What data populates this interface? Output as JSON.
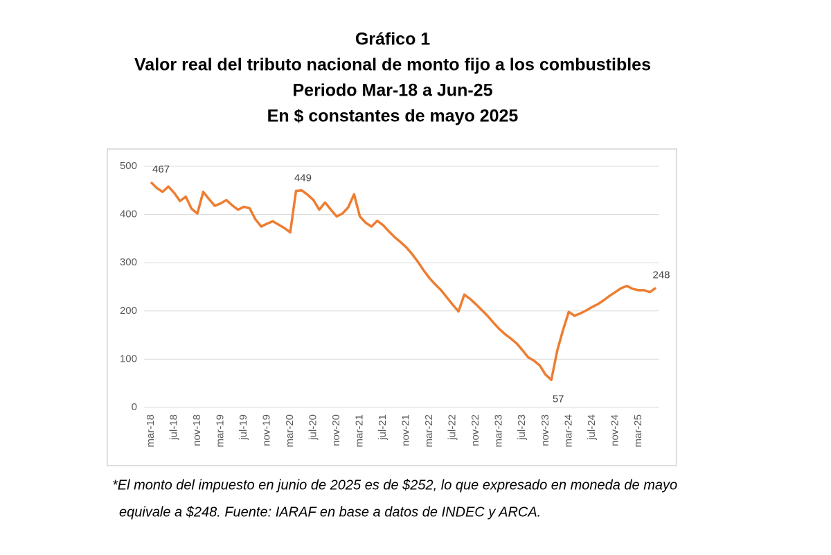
{
  "chart_data": {
    "type": "line",
    "title": [
      "Gráfico 1",
      "Valor real del tributo nacional de monto fijo a los combustibles",
      "Periodo Mar-18 a Jun-25",
      "En $ constantes de mayo 2025"
    ],
    "categories": [
      "mar-18",
      null,
      null,
      null,
      "jul-18",
      null,
      null,
      null,
      "nov-18",
      null,
      null,
      null,
      "mar-19",
      null,
      null,
      null,
      "jul-19",
      null,
      null,
      null,
      "nov-19",
      null,
      null,
      null,
      "mar-20",
      null,
      null,
      null,
      "jul-20",
      null,
      null,
      null,
      "nov-20",
      null,
      null,
      null,
      "mar-21",
      null,
      null,
      null,
      "jul-21",
      null,
      null,
      null,
      "nov-21",
      null,
      null,
      null,
      "mar-22",
      null,
      null,
      null,
      "jul-22",
      null,
      null,
      null,
      "nov-22",
      null,
      null,
      null,
      "mar-23",
      null,
      null,
      null,
      "jul-23",
      null,
      null,
      null,
      "nov-23",
      null,
      null,
      null,
      "mar-24",
      null,
      null,
      null,
      "jul-24",
      null,
      null,
      null,
      "nov-24",
      null,
      null,
      null,
      "mar-25",
      null,
      null,
      null
    ],
    "series": [
      {
        "color": "#ED7D31",
        "values": [
          467,
          455,
          447,
          458,
          445,
          428,
          437,
          412,
          402,
          447,
          432,
          418,
          423,
          430,
          419,
          410,
          416,
          413,
          390,
          375,
          381,
          386,
          379,
          372,
          363,
          449,
          450,
          441,
          430,
          410,
          425,
          410,
          396,
          402,
          415,
          442,
          396,
          383,
          375,
          387,
          378,
          365,
          353,
          343,
          332,
          318,
          302,
          284,
          268,
          255,
          243,
          228,
          213,
          199,
          234,
          225,
          214,
          202,
          190,
          176,
          163,
          152,
          143,
          133,
          119,
          104,
          97,
          87,
          68,
          57,
          117,
          160,
          198,
          190,
          195,
          201,
          208,
          214,
          222,
          231,
          239,
          247,
          252,
          246,
          243,
          243,
          239,
          248
        ]
      }
    ],
    "labeled_points": [
      0,
      25,
      69,
      87
    ],
    "ylim": [
      0,
      500
    ],
    "yticks": [
      0,
      100,
      200,
      300,
      400,
      500
    ],
    "grid": true,
    "footnote": [
      "*El monto del impuesto en junio de 2025 es de $252, lo que expresado en moneda de mayo",
      "equivale a $248. Fuente: IARAF en base a datos de INDEC y ARCA."
    ]
  }
}
